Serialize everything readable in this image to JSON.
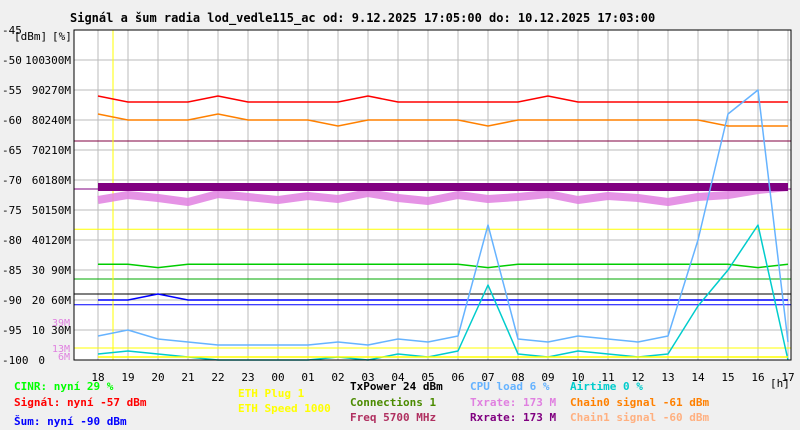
{
  "chart_data": {
    "type": "line",
    "title": "Signál a šum radia lod_vedle115_ac od: 9.12.2025 17:05:00 do: 10.12.2025 17:03:00",
    "y_units_left": "[dBm]",
    "y_units_right": "[%]",
    "x_unit": "[h]",
    "x_ticks": [
      "18",
      "19",
      "20",
      "21",
      "22",
      "23",
      "00",
      "01",
      "02",
      "03",
      "04",
      "05",
      "06",
      "07",
      "08",
      "09",
      "10",
      "11",
      "12",
      "13",
      "14",
      "15",
      "16",
      "17"
    ],
    "y_dbm_ticks": [
      "-45",
      "-50",
      "-55",
      "-60",
      "-65",
      "-70",
      "-75",
      "-80",
      "-85",
      "-90",
      "-95",
      "-100"
    ],
    "y_pct_ticks": [
      "100",
      "90",
      "80",
      "70",
      "60",
      "50",
      "40",
      "30",
      "20",
      "10",
      "0"
    ],
    "y_rate_ticks": [
      "300M",
      "270M",
      "240M",
      "210M",
      "180M",
      "150M",
      "120M",
      "90M",
      "60M",
      "30M"
    ],
    "y_extra_ticks": [
      "39M",
      "13M",
      "6M"
    ],
    "ylim_dbm": [
      -100,
      -45
    ],
    "grid": true,
    "series": [
      {
        "name": "Signál",
        "color": "#ff0000",
        "values": [
          -56,
          -57,
          -57,
          -57,
          -56,
          -57,
          -57,
          -57,
          -57,
          -56,
          -57,
          -57,
          -57,
          -57,
          -57,
          -56,
          -57,
          -57,
          -57,
          -57,
          -57,
          -57,
          -57,
          -57
        ]
      },
      {
        "name": "Chain0 signal",
        "color": "#ff8000",
        "values": [
          -59,
          -60,
          -60,
          -60,
          -59,
          -60,
          -60,
          -60,
          -61,
          -60,
          -60,
          -60,
          -60,
          -61,
          -60,
          -60,
          -60,
          -60,
          -60,
          -60,
          -60,
          -61,
          -61,
          -61
        ]
      },
      {
        "name": "CINR",
        "color": "#00cc00",
        "values": [
          29,
          29,
          28,
          29,
          29,
          29,
          29,
          29,
          29,
          29,
          29,
          29,
          29,
          28,
          29,
          29,
          29,
          29,
          29,
          29,
          29,
          29,
          28,
          29
        ]
      },
      {
        "name": "Šum",
        "color": "#0000ff",
        "values": [
          -90,
          -90,
          -89,
          -90,
          -90,
          -90,
          -90,
          -90,
          -90,
          -90,
          -90,
          -90,
          -90,
          -90,
          -90,
          -90,
          -90,
          -90,
          -90,
          -90,
          -90,
          -90,
          -90,
          -90
        ]
      },
      {
        "name": "Txrate",
        "color": "#e080e0",
        "values": [
          160,
          165,
          162,
          158,
          166,
          163,
          160,
          164,
          161,
          167,
          162,
          159,
          165,
          161,
          163,
          166,
          160,
          164,
          162,
          158,
          163,
          165,
          170,
          173
        ]
      },
      {
        "name": "Rxrate",
        "color": "#800080",
        "values": [
          173,
          173,
          173,
          173,
          173,
          173,
          173,
          173,
          173,
          173,
          173,
          173,
          173,
          173,
          173,
          173,
          173,
          173,
          173,
          173,
          173,
          173,
          173,
          173
        ]
      },
      {
        "name": "CPU load",
        "color": "#66b3ff",
        "values": [
          8,
          10,
          7,
          6,
          5,
          5,
          5,
          5,
          6,
          5,
          7,
          6,
          8,
          45,
          7,
          6,
          8,
          7,
          6,
          8,
          40,
          82,
          90,
          6
        ]
      },
      {
        "name": "Airtime",
        "color": "#00cccc",
        "values": [
          2,
          3,
          2,
          1,
          0,
          0,
          0,
          0,
          1,
          0,
          2,
          1,
          3,
          25,
          2,
          1,
          3,
          2,
          1,
          2,
          18,
          30,
          45,
          0
        ]
      },
      {
        "name": "ETH Plug",
        "color": "#ffff00",
        "values": [
          1,
          1,
          1,
          1,
          1,
          1,
          1,
          1,
          1,
          1,
          1,
          1,
          1,
          1,
          1,
          1,
          1,
          1,
          1,
          1,
          1,
          1,
          1,
          1
        ]
      }
    ],
    "hlines": [
      {
        "color": "#800040",
        "dbm": -63.5
      },
      {
        "color": "#800080",
        "dbm": -71.5
      },
      {
        "color": "#ffff00",
        "dbm": -78.2
      },
      {
        "color": "#00aa00",
        "dbm": -86.5
      },
      {
        "color": "#000000",
        "dbm": -89
      },
      {
        "color": "#0000ff",
        "dbm": -90.8
      },
      {
        "color": "#ffff00",
        "dbm": -98
      }
    ],
    "marker_hour": "18.5"
  },
  "legend": [
    {
      "text": "CINR: nyní 29 %",
      "color": "#00ff00"
    },
    {
      "text": "Signál: nyní -57 dBm",
      "color": "#ff0000"
    },
    {
      "text": "Šum: nyní -90 dBm",
      "color": "#0000ff"
    },
    {
      "text": "ETH Plug 1",
      "color": "#ffff00"
    },
    {
      "text": "ETH Speed 1000",
      "color": "#ffff00"
    },
    {
      "text": "TxPower 24 dBm",
      "color": "#000000"
    },
    {
      "text": "Connections 1",
      "color": "#4b8b00"
    },
    {
      "text": "Freq 5700 MHz",
      "color": "#b03060"
    },
    {
      "text": "CPU load 6 %",
      "color": "#66b3ff"
    },
    {
      "text": "Txrate: 173 M",
      "color": "#e080e0"
    },
    {
      "text": "Rxrate: 173 M",
      "color": "#800080"
    },
    {
      "text": "Airtime 0 %",
      "color": "#00cccc"
    },
    {
      "text": "Chain0 signal -61 dBm",
      "color": "#ff8000"
    },
    {
      "text": "Chain1 signal -60 dBm",
      "color": "#ffb080"
    }
  ]
}
